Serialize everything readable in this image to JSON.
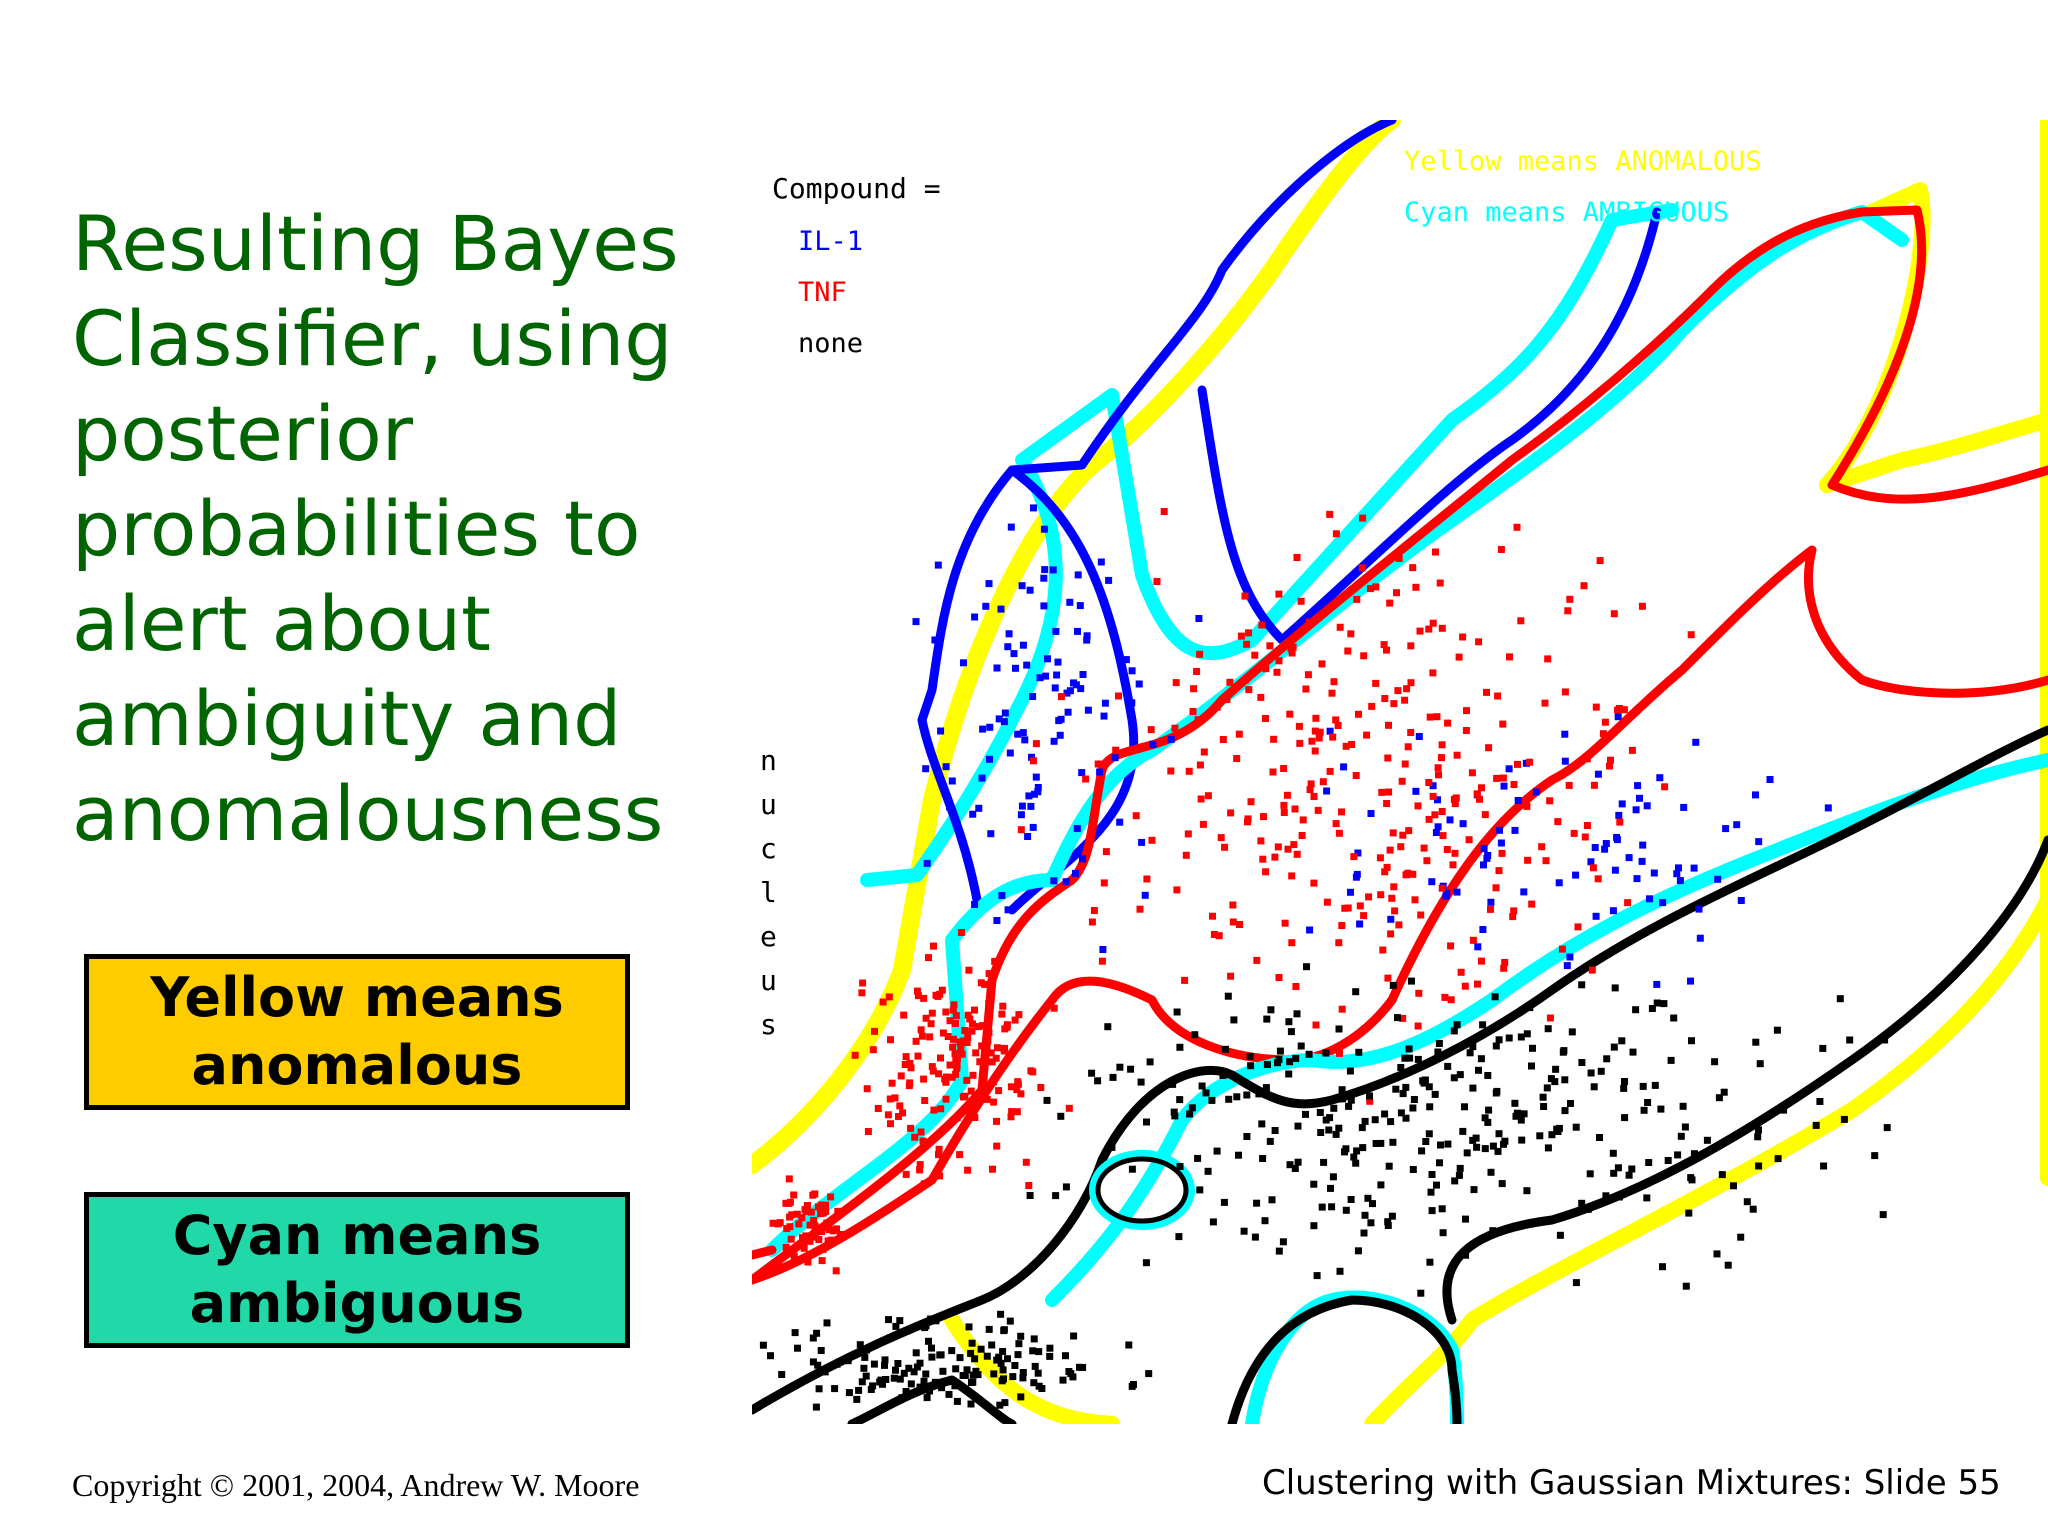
{
  "slide": {
    "title": "Resulting Bayes Classifier, using posterior probabilities to alert about ambiguity and anomalousness",
    "legend_yellow": "Yellow means\nanomalous",
    "legend_cyan": "Cyan means\nambiguous"
  },
  "figure": {
    "compound_label": "Compound =",
    "classes": [
      {
        "label": "IL-1",
        "color": "#0000ff"
      },
      {
        "label": "TNF",
        "color": "#ff0000"
      },
      {
        "label": "none",
        "color": "#000000"
      }
    ],
    "notes": [
      {
        "text": "Yellow means ANOMALOUS",
        "color": "#ffff00"
      },
      {
        "text": "Cyan means AMBIGUOUS",
        "color": "#00ffff"
      }
    ],
    "axis_label_letters": [
      "n",
      "u",
      "c",
      "l",
      "e",
      "u",
      "s"
    ],
    "boundary_colors": {
      "anomalous": "#ffff00",
      "ambiguous": "#00ffff"
    }
  },
  "footer": {
    "copyright": "Copyright © 2001, 2004, Andrew W. Moore",
    "slide_label": "Clustering with Gaussian Mixtures: Slide 55"
  }
}
